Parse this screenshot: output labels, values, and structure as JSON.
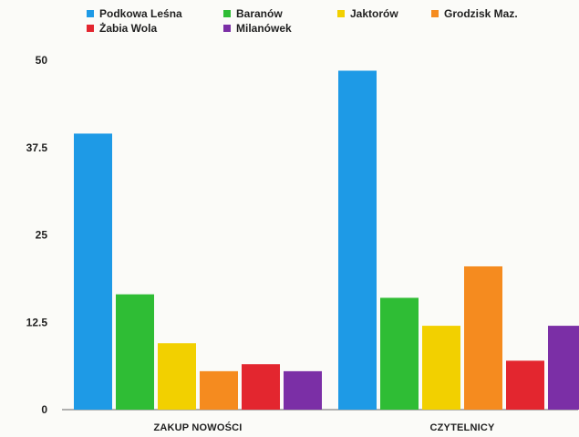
{
  "chart_data": {
    "type": "bar",
    "categories": [
      "ZAKUP NOWOŚCI",
      "CZYTELNICY"
    ],
    "series": [
      {
        "name": "Podkowa Leśna",
        "values": [
          39.5,
          48.5
        ],
        "color": "#1e9ae6"
      },
      {
        "name": "Baranów",
        "values": [
          16.5,
          16.0
        ],
        "color": "#2fbd35"
      },
      {
        "name": "Jaktorów",
        "values": [
          9.5,
          12.0
        ],
        "color": "#f2d000"
      },
      {
        "name": "Grodzisk Maz.",
        "values": [
          5.5,
          20.5
        ],
        "color": "#f58b1f"
      },
      {
        "name": "Żabia Wola",
        "values": [
          6.5,
          7.0
        ],
        "color": "#e3262f"
      },
      {
        "name": "Milanówek",
        "values": [
          5.5,
          12.0
        ],
        "color": "#7b2fa6"
      }
    ],
    "ylim": [
      0,
      50
    ],
    "yticks": [
      "0",
      "12.5",
      "25",
      "37.5",
      "50"
    ],
    "legend": {
      "placement": "top"
    },
    "grid": false
  }
}
